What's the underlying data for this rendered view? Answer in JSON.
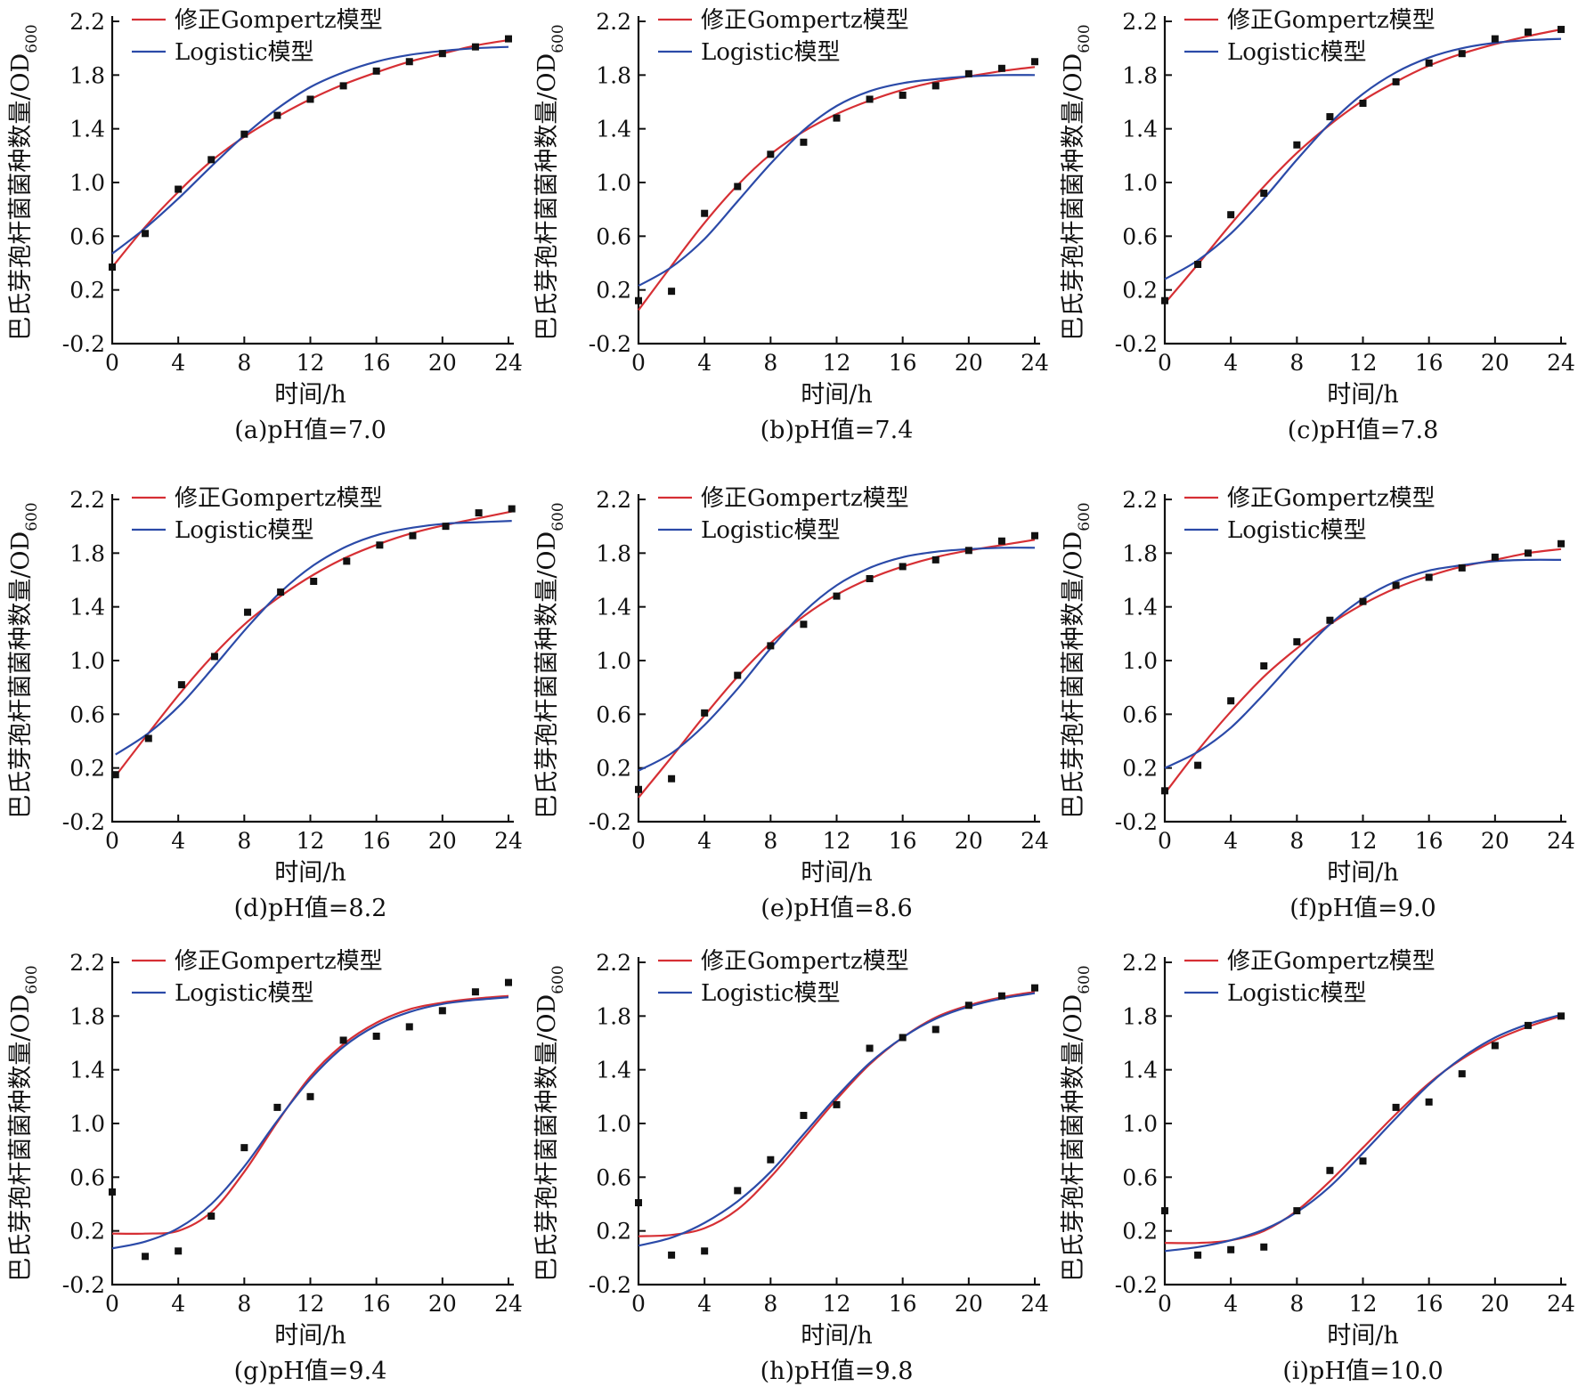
{
  "figure": {
    "y_axis_label": "巴氏芽孢杆菌菌种数量/OD",
    "y_axis_subscript": "600",
    "x_axis_label": "时间/h",
    "legend_gompertz": "修正Gompertz模型",
    "legend_logistic": "Logistic模型",
    "x_ticks": [
      "0",
      "4",
      "8",
      "12",
      "16",
      "20",
      "24"
    ],
    "y_ticks": [
      "-0.2",
      "0.2",
      "0.6",
      "1.0",
      "1.4",
      "1.8",
      "2.2"
    ]
  },
  "colors": {
    "gompertz": "#d62f34",
    "logistic": "#2b4aa8",
    "points": "#111111",
    "axis": "#111111"
  },
  "chart_data": [
    {
      "type": "scatter",
      "caption": "(a)pH值=7.0",
      "xlim": [
        0,
        24
      ],
      "ylim": [
        -0.2,
        2.2
      ],
      "x": [
        0,
        2,
        4,
        6,
        8,
        10,
        12,
        14,
        16,
        18,
        20,
        22,
        24
      ],
      "observed": [
        0.37,
        0.62,
        0.95,
        1.17,
        1.36,
        1.5,
        1.62,
        1.72,
        1.83,
        1.9,
        1.96,
        2.01,
        2.07
      ],
      "series": [
        {
          "name": "修正Gompertz模型",
          "values": [
            0.37,
            0.67,
            0.93,
            1.16,
            1.34,
            1.49,
            1.62,
            1.73,
            1.82,
            1.9,
            1.96,
            2.02,
            2.06
          ]
        },
        {
          "name": "Logistic模型",
          "values": [
            0.47,
            0.66,
            0.88,
            1.12,
            1.35,
            1.55,
            1.71,
            1.82,
            1.9,
            1.95,
            1.98,
            2.0,
            2.01
          ]
        }
      ]
    },
    {
      "type": "scatter",
      "caption": "(b)pH值=7.4",
      "xlim": [
        0,
        24
      ],
      "ylim": [
        -0.2,
        2.2
      ],
      "x": [
        0,
        2,
        4,
        6,
        8,
        10,
        12,
        14,
        16,
        18,
        20,
        22,
        24
      ],
      "observed": [
        0.12,
        0.19,
        0.77,
        0.97,
        1.21,
        1.3,
        1.48,
        1.62,
        1.65,
        1.72,
        1.81,
        1.85,
        1.9
      ],
      "series": [
        {
          "name": "修正Gompertz模型",
          "values": [
            0.05,
            0.38,
            0.7,
            0.98,
            1.21,
            1.38,
            1.51,
            1.61,
            1.69,
            1.75,
            1.79,
            1.83,
            1.86
          ]
        },
        {
          "name": "Logistic模型",
          "values": [
            0.23,
            0.37,
            0.58,
            0.86,
            1.14,
            1.39,
            1.57,
            1.68,
            1.74,
            1.77,
            1.79,
            1.8,
            1.8
          ]
        }
      ]
    },
    {
      "type": "scatter",
      "caption": "(c)pH值=7.8",
      "xlim": [
        0,
        24
      ],
      "ylim": [
        -0.2,
        2.2
      ],
      "x": [
        0,
        2,
        4,
        6,
        8,
        10,
        12,
        14,
        16,
        18,
        20,
        22,
        24
      ],
      "observed": [
        0.12,
        0.39,
        0.76,
        0.92,
        1.28,
        1.49,
        1.59,
        1.75,
        1.89,
        1.96,
        2.07,
        2.12,
        2.14
      ],
      "series": [
        {
          "name": "修正Gompertz模型",
          "values": [
            0.1,
            0.39,
            0.69,
            0.97,
            1.22,
            1.43,
            1.61,
            1.75,
            1.87,
            1.96,
            2.03,
            2.09,
            2.14
          ]
        },
        {
          "name": "Logistic模型",
          "values": [
            0.28,
            0.42,
            0.62,
            0.88,
            1.17,
            1.44,
            1.66,
            1.82,
            1.93,
            2.0,
            2.04,
            2.06,
            2.07
          ]
        }
      ]
    },
    {
      "type": "scatter",
      "caption": "(d)pH值=8.2",
      "xlim": [
        0,
        24
      ],
      "ylim": [
        -0.2,
        2.2
      ],
      "x": [
        0.2,
        2.2,
        4.2,
        6.2,
        8.2,
        10.2,
        12.2,
        14.2,
        16.2,
        18.2,
        20.2,
        22.2,
        24.2
      ],
      "observed": [
        0.15,
        0.42,
        0.82,
        1.03,
        1.36,
        1.51,
        1.59,
        1.74,
        1.86,
        1.93,
        2.0,
        2.1,
        2.13
      ],
      "series": [
        {
          "name": "修正Gompertz模型",
          "values": [
            0.14,
            0.46,
            0.77,
            1.05,
            1.29,
            1.48,
            1.64,
            1.77,
            1.87,
            1.95,
            2.01,
            2.06,
            2.11
          ]
        },
        {
          "name": "Logistic模型",
          "values": [
            0.3,
            0.46,
            0.68,
            0.96,
            1.25,
            1.51,
            1.71,
            1.85,
            1.94,
            1.99,
            2.02,
            2.03,
            2.04
          ]
        }
      ]
    },
    {
      "type": "scatter",
      "caption": "(e)pH值=8.6",
      "xlim": [
        0,
        24
      ],
      "ylim": [
        -0.2,
        2.2
      ],
      "x": [
        0,
        2,
        4,
        6,
        8,
        10,
        12,
        14,
        16,
        18,
        20,
        22,
        24
      ],
      "observed": [
        0.04,
        0.12,
        0.61,
        0.89,
        1.11,
        1.27,
        1.48,
        1.61,
        1.7,
        1.75,
        1.82,
        1.89,
        1.93
      ],
      "series": [
        {
          "name": "修正Gompertz模型",
          "values": [
            -0.02,
            0.28,
            0.59,
            0.88,
            1.13,
            1.33,
            1.49,
            1.61,
            1.7,
            1.77,
            1.82,
            1.86,
            1.9
          ]
        },
        {
          "name": "Logistic模型",
          "values": [
            0.18,
            0.31,
            0.52,
            0.79,
            1.09,
            1.36,
            1.56,
            1.69,
            1.77,
            1.81,
            1.83,
            1.84,
            1.84
          ]
        }
      ]
    },
    {
      "type": "scatter",
      "caption": "(f)pH值=9.0",
      "xlim": [
        0,
        24
      ],
      "ylim": [
        -0.2,
        2.2
      ],
      "x": [
        0,
        2,
        4,
        6,
        8,
        10,
        12,
        14,
        16,
        18,
        20,
        22,
        24
      ],
      "observed": [
        0.03,
        0.22,
        0.7,
        0.96,
        1.14,
        1.3,
        1.44,
        1.56,
        1.62,
        1.69,
        1.77,
        1.8,
        1.87
      ],
      "series": [
        {
          "name": "修正Gompertz模型",
          "values": [
            0.01,
            0.33,
            0.62,
            0.88,
            1.09,
            1.27,
            1.42,
            1.54,
            1.63,
            1.7,
            1.75,
            1.8,
            1.83
          ]
        },
        {
          "name": "Logistic模型",
          "values": [
            0.2,
            0.32,
            0.5,
            0.75,
            1.02,
            1.27,
            1.46,
            1.59,
            1.67,
            1.71,
            1.74,
            1.75,
            1.75
          ]
        }
      ]
    },
    {
      "type": "scatter",
      "caption": "(g)pH值=9.4",
      "xlim": [
        0,
        24
      ],
      "ylim": [
        -0.2,
        2.2
      ],
      "x": [
        0,
        2,
        4,
        6,
        8,
        10,
        12,
        14,
        16,
        18,
        20,
        22,
        24
      ],
      "observed": [
        0.49,
        0.01,
        0.05,
        0.31,
        0.82,
        1.12,
        1.2,
        1.62,
        1.65,
        1.72,
        1.84,
        1.98,
        2.05
      ],
      "series": [
        {
          "name": "修正Gompertz模型",
          "values": [
            0.18,
            0.18,
            0.2,
            0.34,
            0.64,
            1.01,
            1.35,
            1.59,
            1.75,
            1.85,
            1.9,
            1.93,
            1.95
          ]
        },
        {
          "name": "Logistic模型",
          "values": [
            0.07,
            0.12,
            0.22,
            0.4,
            0.68,
            1.02,
            1.33,
            1.57,
            1.73,
            1.83,
            1.89,
            1.92,
            1.94
          ]
        }
      ]
    },
    {
      "type": "scatter",
      "caption": "(h)pH值=9.8",
      "xlim": [
        0,
        24
      ],
      "ylim": [
        -0.2,
        2.2
      ],
      "x": [
        0,
        2,
        4,
        6,
        8,
        10,
        12,
        14,
        16,
        18,
        20,
        22,
        24
      ],
      "observed": [
        0.41,
        0.02,
        0.05,
        0.5,
        0.73,
        1.06,
        1.14,
        1.56,
        1.64,
        1.7,
        1.88,
        1.95,
        2.01
      ],
      "series": [
        {
          "name": "修正Gompertz模型",
          "values": [
            0.16,
            0.17,
            0.22,
            0.36,
            0.6,
            0.89,
            1.18,
            1.44,
            1.64,
            1.79,
            1.88,
            1.94,
            1.98
          ]
        },
        {
          "name": "Logistic模型",
          "values": [
            0.09,
            0.15,
            0.26,
            0.42,
            0.64,
            0.92,
            1.2,
            1.45,
            1.64,
            1.78,
            1.87,
            1.93,
            1.97
          ]
        }
      ]
    },
    {
      "type": "scatter",
      "caption": "(i)pH值=10.0",
      "xlim": [
        0,
        24
      ],
      "ylim": [
        -0.2,
        2.2
      ],
      "x": [
        0,
        2,
        4,
        6,
        8,
        10,
        12,
        14,
        16,
        18,
        20,
        22,
        24
      ],
      "observed": [
        0.35,
        0.02,
        0.06,
        0.08,
        0.35,
        0.65,
        0.72,
        1.12,
        1.16,
        1.37,
        1.58,
        1.73,
        1.8
      ],
      "series": [
        {
          "name": "修正Gompertz模型",
          "values": [
            0.11,
            0.11,
            0.13,
            0.2,
            0.35,
            0.57,
            0.82,
            1.07,
            1.3,
            1.48,
            1.62,
            1.72,
            1.8
          ]
        },
        {
          "name": "Logistic模型",
          "values": [
            0.05,
            0.08,
            0.13,
            0.21,
            0.34,
            0.53,
            0.78,
            1.04,
            1.29,
            1.49,
            1.64,
            1.74,
            1.81
          ]
        }
      ]
    }
  ]
}
